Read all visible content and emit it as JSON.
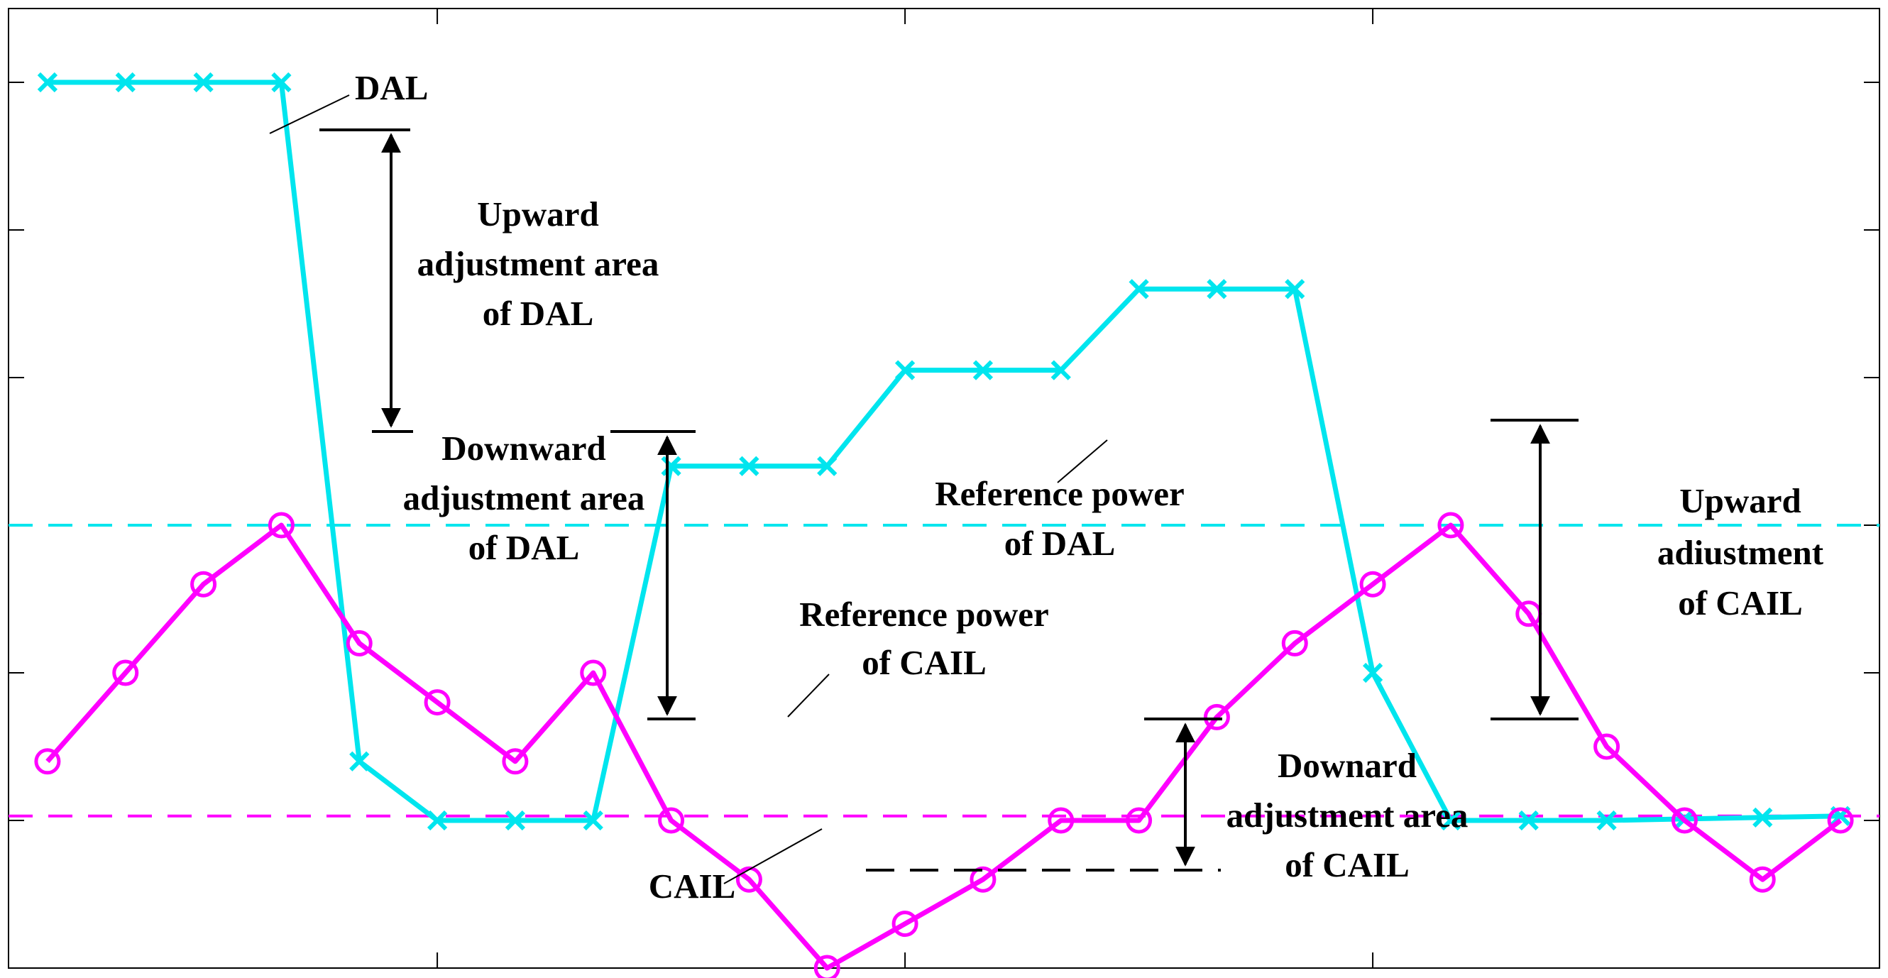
{
  "chart_data": {
    "type": "line",
    "title": "",
    "xlabel": "",
    "ylabel": "",
    "xlim": [
      0.5,
      24.5
    ],
    "ylim": [
      -1.0,
      5.5
    ],
    "grid": false,
    "x_ticks": [
      6,
      12,
      18
    ],
    "y_ticks": [
      0,
      1,
      2,
      3,
      4,
      5
    ],
    "series": [
      {
        "name": "DAL",
        "color": "#00e5ee",
        "marker": "x",
        "x": [
          1,
          2,
          3,
          4,
          5,
          6,
          7,
          8,
          9,
          10,
          11,
          12,
          13,
          14,
          15,
          16,
          17,
          18,
          19,
          20,
          21,
          22,
          23,
          24
        ],
        "y": [
          5.0,
          5.0,
          5.0,
          5.0,
          0.4,
          0.0,
          0.0,
          0.0,
          2.4,
          2.4,
          2.4,
          3.05,
          3.05,
          3.05,
          3.6,
          3.6,
          3.6,
          1.0,
          0.0,
          0.0,
          0.0,
          0.01,
          0.02,
          0.03
        ]
      },
      {
        "name": "CAIL",
        "color": "#ff00ff",
        "marker": "o",
        "x": [
          1,
          2,
          3,
          4,
          5,
          6,
          7,
          8,
          9,
          10,
          11,
          12,
          13,
          14,
          15,
          16,
          17,
          18,
          19,
          20,
          21,
          22,
          23,
          24
        ],
        "y": [
          0.4,
          1.0,
          1.6,
          2.0,
          1.2,
          0.8,
          0.4,
          1.0,
          0.0,
          -0.4,
          -1.0,
          -0.7,
          -0.4,
          0.0,
          0.0,
          0.7,
          1.2,
          1.6,
          2.0,
          1.4,
          0.5,
          0.0,
          -0.4,
          0.0
        ]
      }
    ],
    "reference_lines": [
      {
        "name": "Reference power of DAL",
        "y": 2.0,
        "color": "#00e5ee",
        "style": "dashed"
      },
      {
        "name": "Reference power of CAIL",
        "y": 0.03,
        "color": "#ff00ff",
        "style": "dashed"
      }
    ],
    "annotations": {
      "dal_label": "DAL",
      "cail_label": "CAIL",
      "upward_dal": [
        "Upward",
        "adjustment area",
        "of DAL"
      ],
      "downward_dal": [
        "Downward",
        "adjustment area",
        "of DAL"
      ],
      "ref_dal": [
        "Reference power",
        "of DAL"
      ],
      "ref_cail": [
        "Reference power",
        "of CAIL"
      ],
      "downward_cail": [
        "Downard",
        "adjustment area",
        "of CAIL"
      ],
      "upward_cail": [
        "Upward",
        "adiustment",
        "of CAIL"
      ]
    }
  }
}
